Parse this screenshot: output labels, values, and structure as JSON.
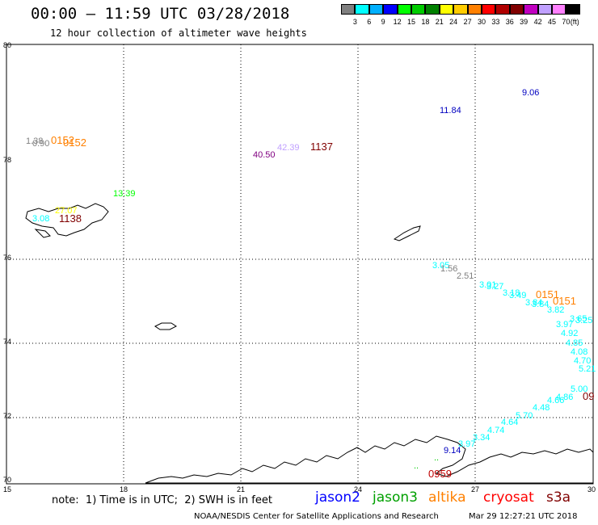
{
  "header": {
    "title": "00:00 – 11:59 UTC 03/28/2018",
    "subtitle": "12 hour collection of altimeter wave heights"
  },
  "colorbar": {
    "colors": [
      "#808080",
      "#00ffff",
      "#00b0ff",
      "#0000ff",
      "#00ff00",
      "#00cc00",
      "#008000",
      "#ffff00",
      "#ffcc00",
      "#ff8000",
      "#ff0000",
      "#b00000",
      "#800000",
      "#c000c0",
      "#c0a0ff",
      "#ff80ff",
      "#000000"
    ],
    "labels": [
      "3",
      "6",
      "9",
      "12",
      "15",
      "18",
      "21",
      "24",
      "27",
      "30",
      "33",
      "36",
      "39",
      "42",
      "45",
      "70"
    ],
    "unit": "(ft)"
  },
  "map": {
    "lat_labels": [
      "80",
      "78",
      "76",
      "74",
      "72",
      "70"
    ],
    "lon_labels": [
      "15",
      "18",
      "21",
      "24",
      "27",
      "30"
    ],
    "observations": [
      {
        "text": "1.38",
        "color": "#808080"
      },
      {
        "text": "0.90",
        "color": "#808080"
      },
      {
        "text": "0152",
        "color": "#ff8000"
      },
      {
        "text": "0152",
        "color": "#ff8000"
      },
      {
        "text": "40.50",
        "color": "#800080"
      },
      {
        "text": "42.39",
        "color": "#c0a0ff"
      },
      {
        "text": "1137",
        "color": "#800000"
      },
      {
        "text": "11.84",
        "color": "#0000c0"
      },
      {
        "text": "9.06",
        "color": "#0000c0"
      },
      {
        "text": "13.39",
        "color": "#00ff00"
      },
      {
        "text": "27.07",
        "color": "#ffff00"
      },
      {
        "text": "3.08",
        "color": "#00ffff"
      },
      {
        "text": "1138",
        "color": "#800000"
      },
      {
        "text": "3.05",
        "color": "#00ffff"
      },
      {
        "text": "1.56",
        "color": "#808080"
      },
      {
        "text": "2.51",
        "color": "#808080"
      },
      {
        "text": "3.01",
        "color": "#00ffff"
      },
      {
        "text": "3.27",
        "color": "#00ffff"
      },
      {
        "text": "3.18",
        "color": "#00ffff"
      },
      {
        "text": "3.49",
        "color": "#00ffff"
      },
      {
        "text": "0151",
        "color": "#ff8000"
      },
      {
        "text": "0151",
        "color": "#ff8000"
      },
      {
        "text": "3.84",
        "color": "#00ffff"
      },
      {
        "text": "3.84",
        "color": "#00ffff"
      },
      {
        "text": "3.82",
        "color": "#00ffff"
      },
      {
        "text": "3.65",
        "color": "#00ffff"
      },
      {
        "text": "3.25",
        "color": "#00ffff"
      },
      {
        "text": "3.97",
        "color": "#00ffff"
      },
      {
        "text": "4.92",
        "color": "#00ffff"
      },
      {
        "text": "4.85",
        "color": "#00ffff"
      },
      {
        "text": "4.08",
        "color": "#00ffff"
      },
      {
        "text": "4.70",
        "color": "#00ffff"
      },
      {
        "text": "5.21",
        "color": "#00ffff"
      },
      {
        "text": "5.00",
        "color": "#00ffff"
      },
      {
        "text": "4.86",
        "color": "#00ffff"
      },
      {
        "text": "4.66",
        "color": "#00ffff"
      },
      {
        "text": "4.48",
        "color": "#00ffff"
      },
      {
        "text": "5.70",
        "color": "#00ffff"
      },
      {
        "text": "4.64",
        "color": "#00ffff"
      },
      {
        "text": "4.74",
        "color": "#00ffff"
      },
      {
        "text": "3.34",
        "color": "#00ffff"
      },
      {
        "text": "3.97",
        "color": "#00ffff"
      },
      {
        "text": "9.14",
        "color": "#0000c0"
      },
      {
        "text": "0959",
        "color": "#c00000"
      },
      {
        "text": "09",
        "color": "#800000"
      }
    ]
  },
  "note": "note:  1) Time is in UTC;  2) SWH is in feet",
  "legend": [
    {
      "text": "jason2",
      "color": "#0000ff"
    },
    {
      "text": "jason3",
      "color": "#00a000"
    },
    {
      "text": "altika",
      "color": "#ff8000"
    },
    {
      "text": "cryosat",
      "color": "#ff0000"
    },
    {
      "text": "s3a",
      "color": "#800000"
    }
  ],
  "footer": {
    "credit": "NOAA/NESDIS Center for Satellite Applications and Research",
    "timestamp": "Mar 29 12:27:21 UTC 2018"
  }
}
